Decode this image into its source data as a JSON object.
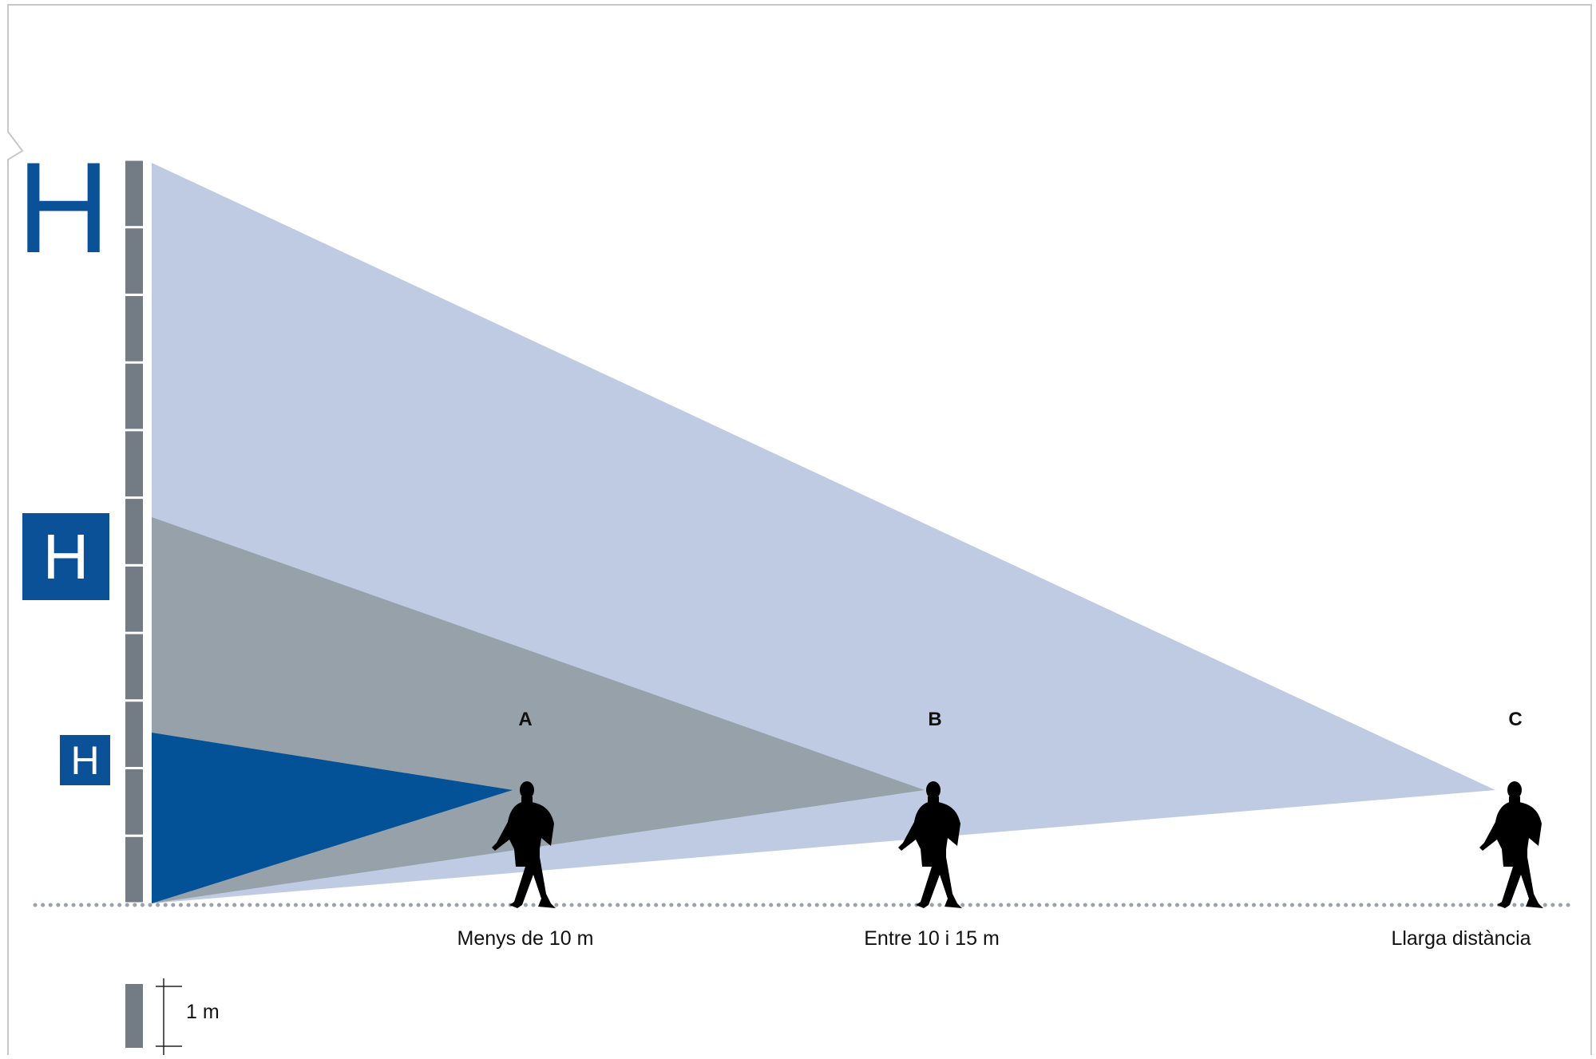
{
  "signs": {
    "large": "H",
    "medium": "H",
    "small": "H"
  },
  "walkers": [
    {
      "label": "A",
      "distance_label": "Menys de 10 m"
    },
    {
      "label": "B",
      "distance_label": "Entre 10 i 15 m"
    },
    {
      "label": "C",
      "distance_label": "Llarga distància"
    }
  ],
  "scale": {
    "label": "1 m"
  },
  "colors": {
    "brand_blue": "#0b5197",
    "light_blue_cone": "#bfcbe2",
    "grey_cone": "#96a1a9",
    "dark_blue_cone": "#035197",
    "pillar": "#737b84",
    "ground_dots": "#9aa3ad",
    "silhouette": "#000000"
  }
}
